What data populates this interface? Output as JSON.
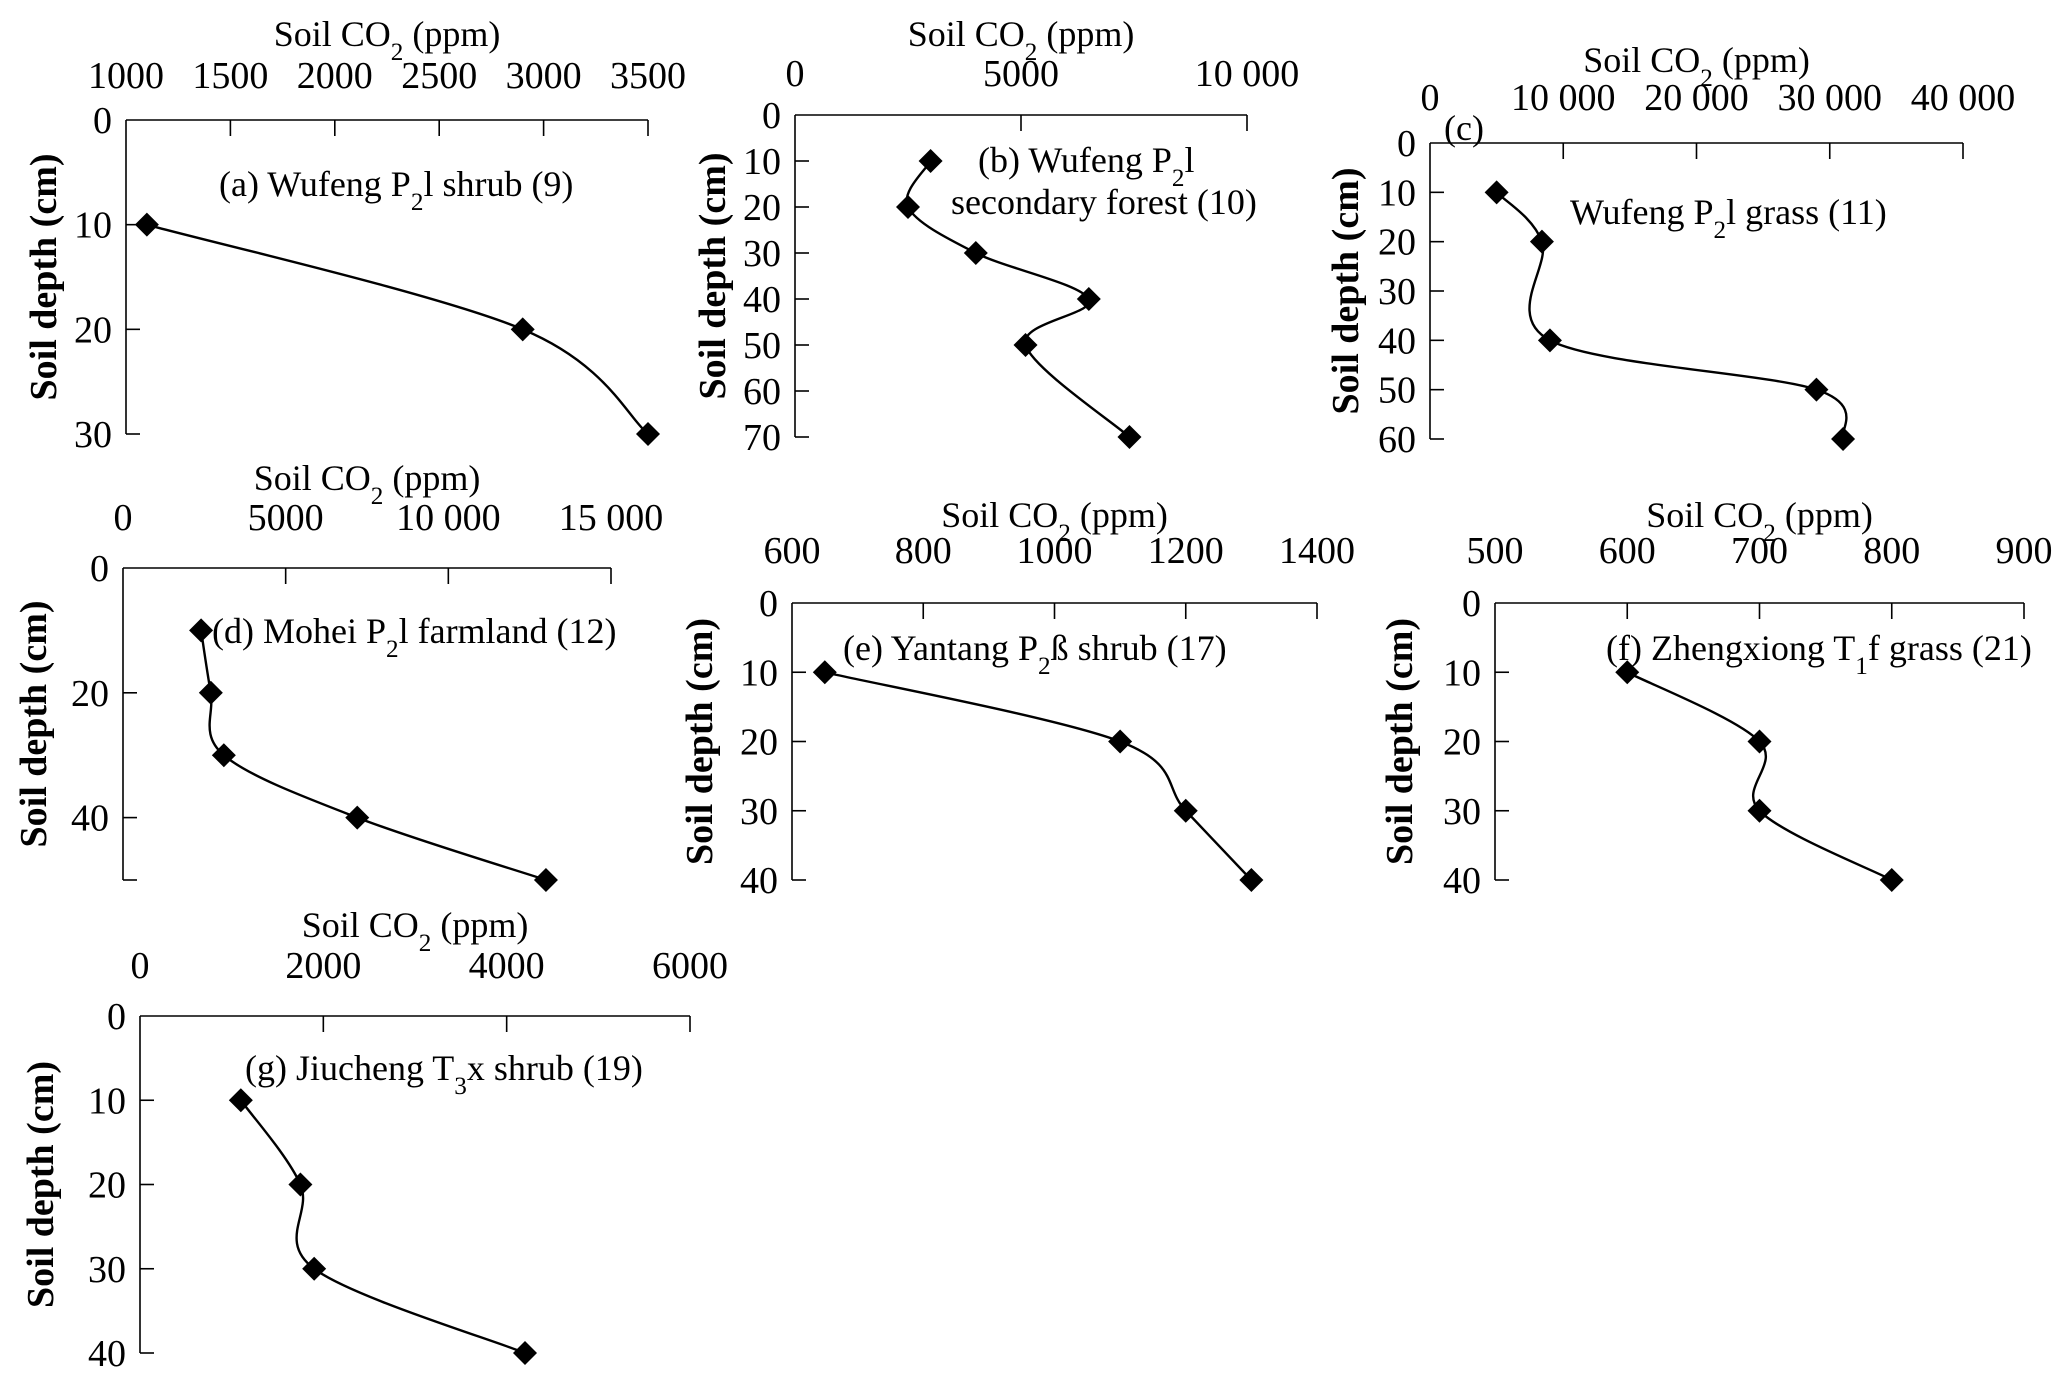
{
  "figure": {
    "description": "Soil CO2 concentration profiles with depth at seven sites"
  },
  "chart_data": [
    {
      "id": "a",
      "type": "line",
      "title": "(a) Wufeng P2l shrub (9)",
      "title_parts": [
        {
          "t": "(a) Wufeng P"
        },
        {
          "t": "2",
          "sub": true
        },
        {
          "t": "l shrub (9)"
        }
      ],
      "xlabel": "Soil CO2 (ppm)",
      "ylabel": "Soil depth (cm)",
      "x_axis_position": "top",
      "y_inverted": true,
      "xlim": [
        1000,
        3500
      ],
      "ylim": [
        0,
        30
      ],
      "xticks": [
        1000,
        1500,
        2000,
        2500,
        3000,
        3500
      ],
      "xtick_labels": [
        "1000",
        "1500",
        "2000",
        "2500",
        "3000",
        "3500"
      ],
      "yticks": [
        0,
        10,
        20,
        30
      ],
      "ytick_labels": [
        "0",
        "10",
        "20",
        "30"
      ],
      "series": [
        {
          "name": "Wufeng P2l shrub",
          "x": [
            1100,
            2900,
            3500
          ],
          "y": [
            10,
            20,
            30
          ]
        }
      ],
      "grid": false
    },
    {
      "id": "b",
      "type": "line",
      "title": "(b) Wufeng P2l secondary forest (10)",
      "title_parts": [
        {
          "t": "(b) Wufeng P"
        },
        {
          "t": "2",
          "sub": true
        },
        {
          "t": "l"
        }
      ],
      "title_line2": "secondary forest (10)",
      "xlabel": "Soil CO2 (ppm)",
      "ylabel": "Soil depth (cm)",
      "x_axis_position": "top",
      "y_inverted": true,
      "xlim": [
        0,
        10000
      ],
      "ylim": [
        0,
        70
      ],
      "xticks": [
        0,
        5000,
        10000
      ],
      "xtick_labels": [
        "0",
        "5000",
        "10 000"
      ],
      "yticks": [
        0,
        10,
        20,
        30,
        40,
        50,
        60,
        70
      ],
      "ytick_labels": [
        "0",
        "10",
        "20",
        "30",
        "40",
        "50",
        "60",
        "70"
      ],
      "series": [
        {
          "name": "Wufeng P2l secondary forest",
          "x": [
            3000,
            2500,
            4000,
            6500,
            5100,
            7400
          ],
          "y": [
            10,
            20,
            30,
            40,
            50,
            70
          ]
        }
      ],
      "grid": false
    },
    {
      "id": "c",
      "type": "line",
      "title": "(c) Wufeng P2l grass (11)",
      "title_tag": "(c)",
      "title_parts": [
        {
          "t": "Wufeng P"
        },
        {
          "t": "2",
          "sub": true
        },
        {
          "t": "l grass (11)"
        }
      ],
      "xlabel": "Soil CO2 (ppm)",
      "ylabel": "Soil depth (cm)",
      "x_axis_position": "top",
      "y_inverted": true,
      "xlim": [
        0,
        40000
      ],
      "ylim": [
        0,
        60
      ],
      "xticks": [
        0,
        10000,
        20000,
        30000,
        40000
      ],
      "xtick_labels": [
        "0",
        "10 000",
        "20 000",
        "30 000",
        "40 000"
      ],
      "yticks": [
        0,
        10,
        20,
        30,
        40,
        50,
        60
      ],
      "ytick_labels": [
        "0",
        "10",
        "20",
        "30",
        "40",
        "50",
        "60"
      ],
      "series": [
        {
          "name": "Wufeng P2l grass",
          "x": [
            5000,
            8400,
            9000,
            29000,
            31000
          ],
          "y": [
            10,
            20,
            40,
            50,
            60
          ]
        }
      ],
      "grid": false
    },
    {
      "id": "d",
      "type": "line",
      "title": "(d) Mohei P2l farmland (12)",
      "title_parts": [
        {
          "t": "(d) Mohei P"
        },
        {
          "t": "2",
          "sub": true
        },
        {
          "t": "l farmland (12)"
        }
      ],
      "xlabel": "Soil CO2 (ppm)",
      "ylabel": "Soil depth (cm)",
      "x_axis_position": "top",
      "y_inverted": true,
      "xlim": [
        0,
        15000
      ],
      "ylim": [
        0,
        50
      ],
      "xticks": [
        0,
        5000,
        10000,
        15000
      ],
      "xtick_labels": [
        "0",
        "5000",
        "10 000",
        "15 000"
      ],
      "yticks": [
        0,
        20,
        40,
        50
      ],
      "ytick_labels": [
        "0",
        "20",
        "40",
        ""
      ],
      "series": [
        {
          "name": "Mohei P2l farmland",
          "x": [
            2400,
            2700,
            3100,
            7200,
            13000
          ],
          "y": [
            10,
            20,
            30,
            40,
            50
          ]
        }
      ],
      "grid": false
    },
    {
      "id": "e",
      "type": "line",
      "title": "(e) Yantang P2ß shrub (17)",
      "title_parts": [
        {
          "t": "(e) Yantang P"
        },
        {
          "t": "2",
          "sub": true
        },
        {
          "t": "ß shrub (17)"
        }
      ],
      "xlabel": "Soil CO2 (ppm)",
      "ylabel": "Soil depth (cm)",
      "x_axis_position": "top",
      "y_inverted": true,
      "xlim": [
        600,
        1400
      ],
      "ylim": [
        0,
        40
      ],
      "xticks": [
        600,
        800,
        1000,
        1200,
        1400
      ],
      "xtick_labels": [
        "600",
        "800",
        "1000",
        "1200",
        "1400"
      ],
      "yticks": [
        0,
        10,
        20,
        30,
        40
      ],
      "ytick_labels": [
        "0",
        "10",
        "20",
        "30",
        "40"
      ],
      "series": [
        {
          "name": "Yantang P2ß shrub",
          "x": [
            650,
            1100,
            1200,
            1300
          ],
          "y": [
            10,
            20,
            30,
            40
          ]
        }
      ],
      "grid": false
    },
    {
      "id": "f",
      "type": "line",
      "title": "(f) Zhengxiong T1f grass (21)",
      "title_parts": [
        {
          "t": "(f) Zhengxiong T"
        },
        {
          "t": "1",
          "sub": true
        },
        {
          "t": "f grass (21)"
        }
      ],
      "xlabel": "Soil CO2 (ppm)",
      "ylabel": "Soil depth (cm)",
      "x_axis_position": "top",
      "y_inverted": true,
      "xlim": [
        500,
        900
      ],
      "ylim": [
        0,
        40
      ],
      "xticks": [
        500,
        600,
        700,
        800,
        900
      ],
      "xtick_labels": [
        "500",
        "600",
        "700",
        "800",
        "900"
      ],
      "yticks": [
        0,
        10,
        20,
        30,
        40
      ],
      "ytick_labels": [
        "0",
        "10",
        "20",
        "30",
        "40"
      ],
      "series": [
        {
          "name": "Zhengxiong T1f grass",
          "x": [
            600,
            700,
            700,
            800
          ],
          "y": [
            10,
            20,
            30,
            40
          ]
        }
      ],
      "grid": false
    },
    {
      "id": "g",
      "type": "line",
      "title": "(g) Jiucheng T3x shrub (19)",
      "title_parts": [
        {
          "t": "(g) Jiucheng T"
        },
        {
          "t": "3",
          "sub": true
        },
        {
          "t": "x shrub (19)"
        }
      ],
      "xlabel": "Soil CO2 (ppm)",
      "ylabel": "Soil depth (cm)",
      "x_axis_position": "top",
      "y_inverted": true,
      "xlim": [
        0,
        6000
      ],
      "ylim": [
        0,
        40
      ],
      "xticks": [
        0,
        2000,
        4000,
        6000
      ],
      "xtick_labels": [
        "0",
        "2000",
        "4000",
        "6000"
      ],
      "yticks": [
        0,
        10,
        20,
        30,
        40
      ],
      "ytick_labels": [
        "0",
        "10",
        "20",
        "30",
        "40"
      ],
      "series": [
        {
          "name": "Jiucheng T3x shrub",
          "x": [
            1100,
            1750,
            1900,
            4200
          ],
          "y": [
            10,
            20,
            30,
            40
          ]
        }
      ],
      "grid": false
    }
  ],
  "labels": {
    "xlabel_main": "Soil CO",
    "xlabel_sub": "2",
    "xlabel_tail": " (ppm)",
    "ylabel": "Soil depth (cm)"
  }
}
